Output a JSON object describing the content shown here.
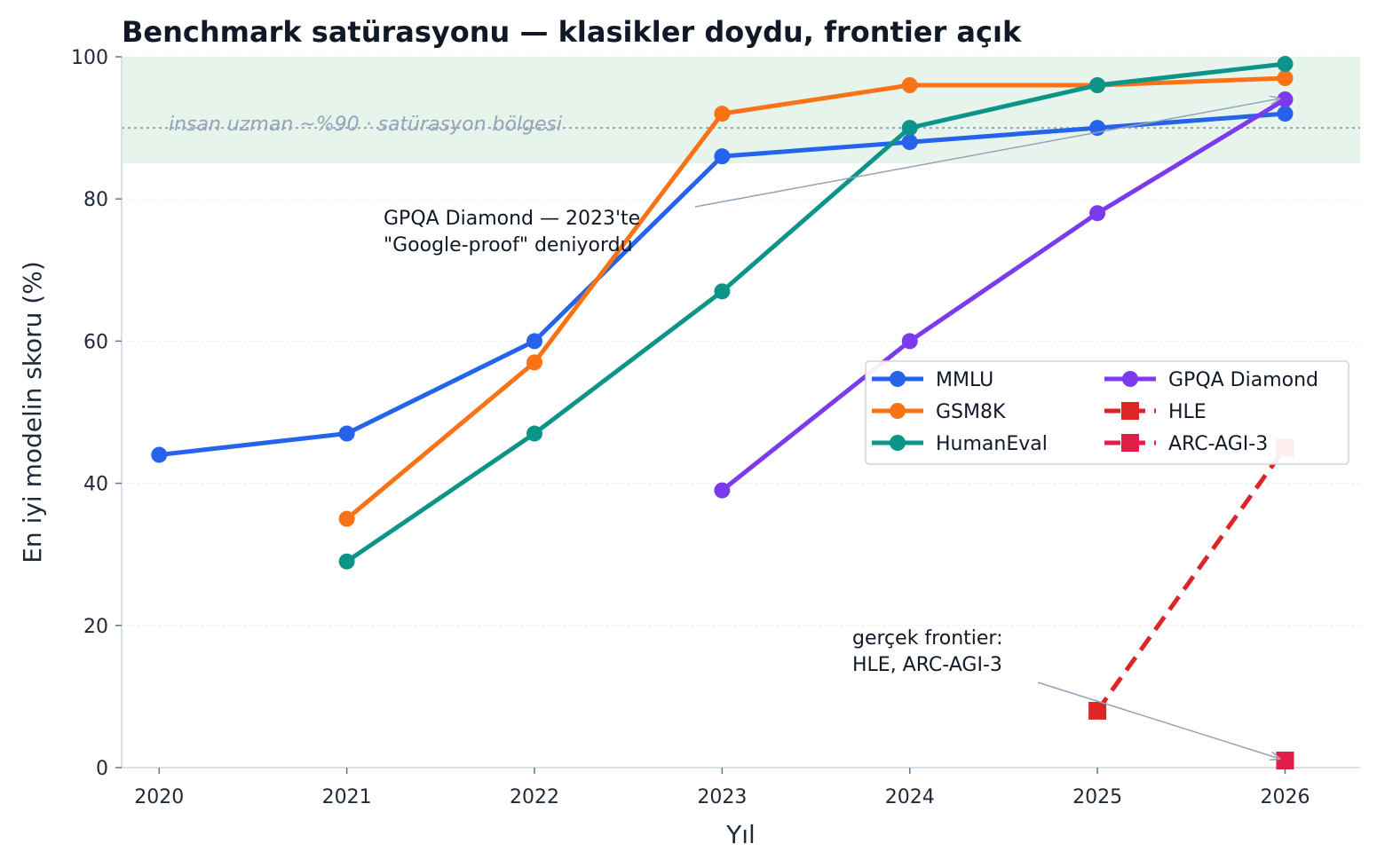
{
  "chart_data": {
    "type": "line",
    "title": "Benchmark satürasyonu — klasikler doydu, frontier açık",
    "xlabel": "Yıl",
    "ylabel": "En iyi modelin skoru (%)",
    "xlim": [
      2019.8,
      2026.4
    ],
    "ylim": [
      0,
      100
    ],
    "x_ticks": [
      "2020",
      "2021",
      "2022",
      "2023",
      "2024",
      "2025",
      "2026"
    ],
    "y_ticks": [
      "0",
      "20",
      "40",
      "60",
      "80",
      "100"
    ],
    "grid": "horizontal dotted",
    "legend_position": "center-right",
    "saturation_band": {
      "y_from": 85,
      "y_to": 100,
      "color": "#e6f4ec"
    },
    "human_expert_line": {
      "y": 90,
      "label": "insan uzman ~%90  ·  satürasyon bölgesi",
      "color": "#94a3b8"
    },
    "series": [
      {
        "name": "MMLU",
        "color": "#2563eb",
        "style": "solid",
        "marker": "circle",
        "x": [
          2020,
          2021,
          2022,
          2023,
          2024,
          2025,
          2026
        ],
        "y": [
          44,
          47,
          60,
          86,
          88,
          90,
          92
        ]
      },
      {
        "name": "GSM8K",
        "color": "#f97316",
        "style": "solid",
        "marker": "circle",
        "x": [
          2021,
          2022,
          2023,
          2024,
          2025,
          2026
        ],
        "y": [
          35,
          57,
          92,
          96,
          96,
          97
        ]
      },
      {
        "name": "HumanEval",
        "color": "#0d9488",
        "style": "solid",
        "marker": "circle",
        "x": [
          2021,
          2022,
          2023,
          2024,
          2025,
          2026
        ],
        "y": [
          29,
          47,
          67,
          90,
          96,
          99
        ]
      },
      {
        "name": "GPQA Diamond",
        "color": "#7c3aed",
        "style": "solid",
        "marker": "circle",
        "x": [
          2023,
          2024,
          2025,
          2026
        ],
        "y": [
          39,
          60,
          78,
          94
        ]
      },
      {
        "name": "HLE",
        "color": "#dc2626",
        "style": "dashed",
        "marker": "square",
        "x": [
          2025,
          2026
        ],
        "y": [
          8,
          45
        ]
      },
      {
        "name": "ARC-AGI-3",
        "color": "#e11d48",
        "style": "dashed",
        "marker": "square",
        "x": [
          2026
        ],
        "y": [
          1
        ]
      }
    ],
    "annotations": [
      {
        "lines": [
          "GPQA Diamond — 2023'te",
          "\"Google-proof\" deniyordu"
        ],
        "points_to": {
          "x": 2026,
          "y": 94
        }
      },
      {
        "lines": [
          "gerçek frontier:",
          "HLE, ARC-AGI-3"
        ],
        "points_to": {
          "x": 2026,
          "y": 1
        }
      }
    ]
  }
}
